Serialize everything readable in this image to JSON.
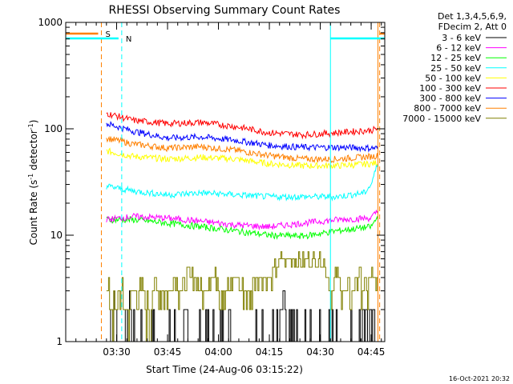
{
  "chart_data": {
    "type": "line",
    "title": "RHESSI Observing Summary Count Rates",
    "xlabel": "Start Time (24-Aug-06 03:15:22)",
    "ylabel_main": "Count Rate (s",
    "ylabel_sup1": "-1",
    "ylabel_mid": " detector",
    "ylabel_sup2": "-1",
    "ylabel_end": ")",
    "yscale": "log",
    "ylim": [
      1,
      1000
    ],
    "xlim_minutes": [
      0,
      94
    ],
    "x_ticks": [
      {
        "m": 15,
        "label": "03:30"
      },
      {
        "m": 30,
        "label": "03:45"
      },
      {
        "m": 45,
        "label": "04:00"
      },
      {
        "m": 60,
        "label": "04:15"
      },
      {
        "m": 75,
        "label": "04:30"
      },
      {
        "m": 90,
        "label": "04:45"
      }
    ],
    "y_ticks": [
      {
        "v": 1,
        "label": "1"
      },
      {
        "v": 10,
        "label": "10"
      },
      {
        "v": 100,
        "label": "100"
      },
      {
        "v": 1000,
        "label": "1000"
      }
    ],
    "legend_header": [
      "Det 1,3,4,5,6,9,",
      "FDecim 2, Att 0"
    ],
    "series": [
      {
        "name": "3 - 6 keV",
        "color": "#000000",
        "kind": "step",
        "x": [
          12,
          14,
          16,
          18,
          20,
          22,
          24,
          26,
          28,
          30,
          32,
          34,
          36,
          38,
          40,
          42,
          44,
          46,
          48,
          50,
          52,
          54,
          56,
          58,
          60,
          62,
          64,
          66,
          68,
          70,
          72,
          74,
          76,
          78,
          80,
          82,
          84,
          86,
          88,
          90,
          92
        ],
        "values": [
          1,
          2,
          1,
          2,
          1,
          1,
          1,
          1,
          1,
          1,
          1,
          1,
          1,
          1,
          1,
          1,
          1,
          1,
          1,
          1,
          1,
          1,
          1,
          1,
          1,
          1,
          2,
          1,
          1,
          1,
          1,
          1,
          1,
          1,
          1,
          1,
          1,
          1,
          2,
          1,
          1
        ]
      },
      {
        "name": "6 - 12 keV",
        "color": "#ff00ff",
        "kind": "noisy",
        "x": [
          12,
          20,
          30,
          40,
          50,
          60,
          70,
          80,
          90,
          92
        ],
        "values": [
          14,
          15,
          14.5,
          13.5,
          12.5,
          12,
          13,
          14,
          14.5,
          17
        ]
      },
      {
        "name": "12 - 25 keV",
        "color": "#00ff00",
        "kind": "noisy",
        "x": [
          12,
          20,
          30,
          40,
          50,
          60,
          70,
          80,
          90,
          92
        ],
        "values": [
          14,
          14,
          13,
          12,
          11,
          10,
          9.8,
          11,
          12,
          15
        ]
      },
      {
        "name": "25 - 50 keV",
        "color": "#00ffff",
        "kind": "noisy",
        "x": [
          12,
          20,
          30,
          40,
          50,
          60,
          70,
          80,
          88,
          90,
          92
        ],
        "values": [
          29,
          26,
          24,
          25,
          24,
          23,
          23,
          23,
          25,
          30,
          48
        ]
      },
      {
        "name": "50 - 100 keV",
        "color": "#ffff00",
        "kind": "noisy",
        "x": [
          12,
          20,
          30,
          40,
          50,
          60,
          70,
          80,
          90,
          92
        ],
        "values": [
          62,
          55,
          52,
          54,
          52,
          47,
          45,
          45,
          47,
          48
        ]
      },
      {
        "name": "100 - 300 keV",
        "color": "#ff0000",
        "kind": "noisy",
        "x": [
          12,
          20,
          30,
          40,
          50,
          60,
          70,
          80,
          90,
          92
        ],
        "values": [
          140,
          120,
          112,
          115,
          105,
          92,
          88,
          92,
          97,
          100
        ]
      },
      {
        "name": "300 - 800 keV",
        "color": "#0000ff",
        "kind": "noisy",
        "x": [
          12,
          20,
          30,
          40,
          50,
          60,
          70,
          80,
          90,
          92
        ],
        "values": [
          112,
          95,
          82,
          84,
          78,
          70,
          67,
          67,
          66,
          66
        ]
      },
      {
        "name": "800 - 7000 keV",
        "color": "#ff8000",
        "kind": "noisy",
        "x": [
          12,
          20,
          30,
          40,
          50,
          60,
          70,
          80,
          90,
          92
        ],
        "values": [
          82,
          72,
          66,
          68,
          63,
          56,
          52,
          52,
          55,
          56
        ]
      },
      {
        "name": "7000 - 15000 keV",
        "color": "#808000",
        "kind": "step",
        "x": [
          12,
          14,
          16,
          18,
          20,
          22,
          24,
          26,
          28,
          30,
          32,
          34,
          36,
          38,
          40,
          42,
          44,
          46,
          48,
          50,
          52,
          54,
          56,
          58,
          60,
          62,
          64,
          66,
          68,
          70,
          72,
          74,
          76,
          78,
          80,
          82,
          84,
          86,
          88,
          90,
          92
        ],
        "values": [
          3,
          2,
          3,
          2,
          3,
          3,
          2,
          3,
          3,
          3,
          4,
          3,
          4,
          4,
          3,
          4,
          4,
          3,
          3,
          4,
          3,
          3,
          4,
          4,
          4,
          5,
          6,
          6,
          6,
          6,
          6,
          6,
          6,
          3,
          4,
          3,
          3,
          4,
          3,
          4,
          3
        ]
      }
    ],
    "markers": [
      {
        "kind": "orange-dashed",
        "m": 10.5
      },
      {
        "kind": "orange-dashed",
        "m": 92.5
      },
      {
        "kind": "cyan-dashed",
        "m": 16.5
      },
      {
        "kind": "cyan-dashed",
        "m": 94
      },
      {
        "kind": "cyan-solid",
        "m": 0
      },
      {
        "kind": "cyan-solid",
        "m": 78
      },
      {
        "kind": "orange-solid",
        "m": 92
      }
    ],
    "flags": [
      {
        "label": "S",
        "color": "#ff8000",
        "from": 0,
        "to": 10.5
      },
      {
        "label": "N",
        "color": "#00ffff",
        "from": 0,
        "to": 16.5
      }
    ],
    "flag_segments_right": [
      {
        "color": "#00ffff",
        "from": 78,
        "to": 94
      },
      {
        "color": "#ff8000",
        "from": 92.5,
        "to": 94
      }
    ],
    "grid": false,
    "legend_placement": "right"
  },
  "footer_timestamp": "16-Oct-2021 20:32"
}
